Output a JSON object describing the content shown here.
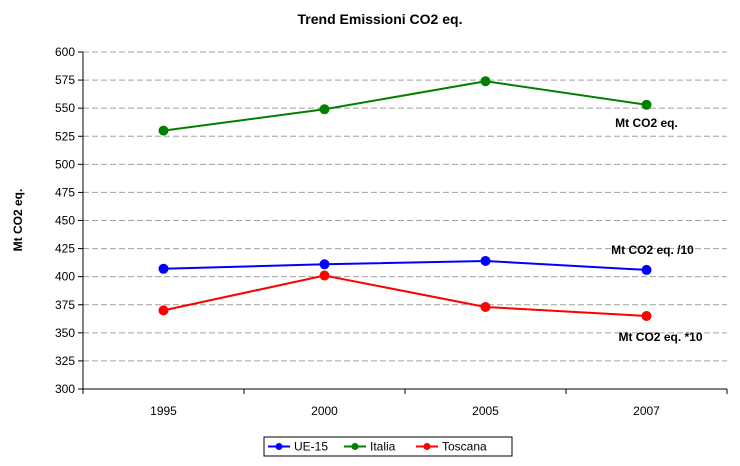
{
  "chart_data": {
    "type": "line",
    "title": "Trend Emissioni CO2 eq.",
    "xlabel": "",
    "ylabel": "Mt CO2 eq.",
    "categories": [
      "1995",
      "2000",
      "2005",
      "2007"
    ],
    "ylim": [
      300,
      600
    ],
    "yticks": [
      300,
      325,
      350,
      375,
      400,
      425,
      450,
      475,
      500,
      525,
      550,
      575,
      600
    ],
    "grid": true,
    "legend_position": "bottom",
    "series": [
      {
        "name": "UE-15",
        "color": "#0000ff",
        "values": [
          407,
          411,
          414,
          406
        ]
      },
      {
        "name": "Italia",
        "color": "#008000",
        "values": [
          530,
          549,
          574,
          553
        ]
      },
      {
        "name": "Toscana",
        "color": "#ff0000",
        "values": [
          370,
          401,
          373,
          365
        ]
      }
    ],
    "annotations": [
      {
        "text": "Mt CO2 eq.",
        "series": "Italia"
      },
      {
        "text": "Mt CO2 eq. /10",
        "series": "UE-15"
      },
      {
        "text": "Mt CO2 eq. *10",
        "series": "Toscana"
      }
    ]
  }
}
